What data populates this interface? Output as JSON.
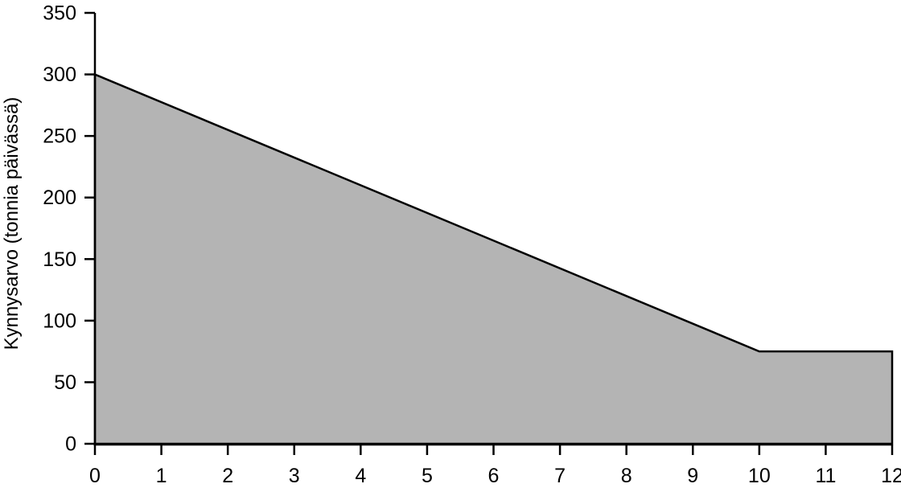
{
  "figure": {
    "background_color": "#ffffff"
  },
  "chart_data": {
    "type": "area",
    "title": "",
    "xlabel": "",
    "ylabel": "Kynnysarvo (tonnia päivässä)",
    "x": [
      0,
      10,
      12
    ],
    "y": [
      300,
      75,
      75
    ],
    "points_description": "Threshold declines linearly from 300 at x=0 to 75 at x=10, then stays constant at 75 through x=12",
    "x_ticks": [
      0,
      1,
      2,
      3,
      4,
      5,
      6,
      7,
      8,
      9,
      10,
      11,
      12
    ],
    "y_ticks": [
      0,
      50,
      100,
      150,
      200,
      250,
      300,
      350
    ],
    "xlim": [
      0,
      12
    ],
    "ylim": [
      0,
      350
    ],
    "grid": false,
    "legend": false,
    "fill_color": "#b4b4b4",
    "line_color": "#000000",
    "axis_color": "#000000"
  }
}
